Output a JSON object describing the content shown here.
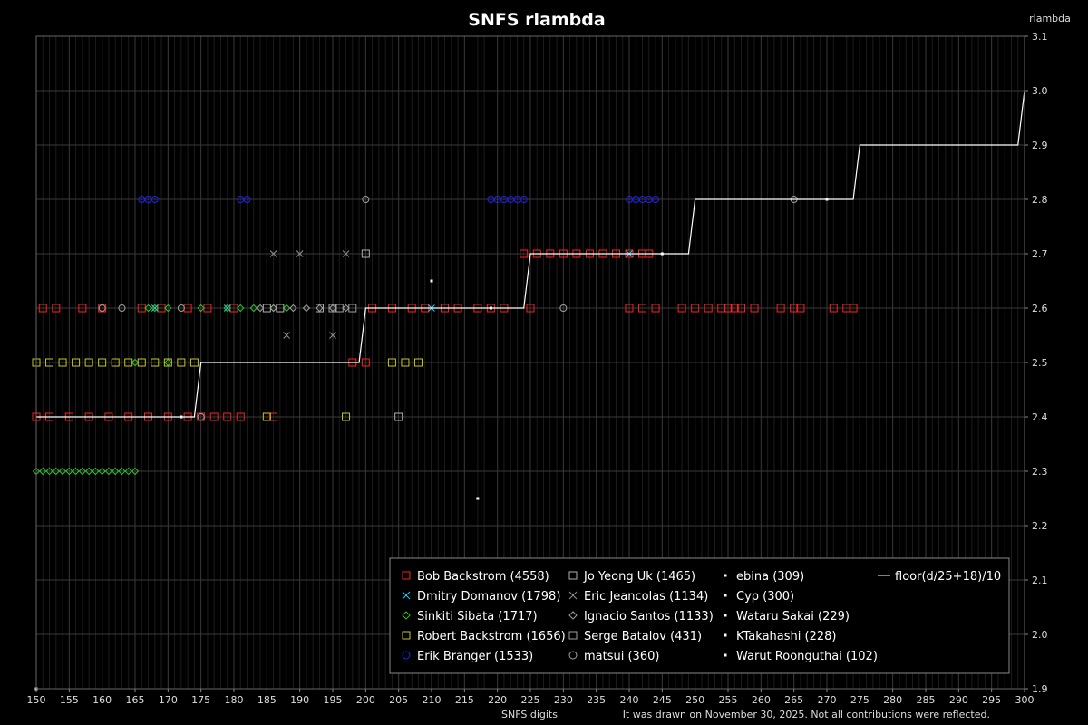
{
  "chart_data": {
    "type": "scatter",
    "title": "SNFS rlambda",
    "xlabel": "SNFS digits",
    "ylabel": "rlambda",
    "footnote": "It was drawn on November 30, 2025. Not all contributions were reflected.",
    "xlim": [
      150,
      300
    ],
    "ylim": [
      1.9,
      3.1
    ],
    "x_ticks": [
      150,
      155,
      160,
      165,
      170,
      175,
      180,
      185,
      190,
      195,
      200,
      205,
      210,
      215,
      220,
      225,
      230,
      235,
      240,
      245,
      250,
      255,
      260,
      265,
      270,
      275,
      280,
      285,
      290,
      295,
      300
    ],
    "y_ticks": [
      1.9,
      2.0,
      2.1,
      2.2,
      2.3,
      2.4,
      2.5,
      2.6,
      2.7,
      2.8,
      2.9,
      3.0,
      3.1
    ],
    "grid": true,
    "legend_position": "bottom-right",
    "series": [
      {
        "name": "Bob Backstrom (4558)",
        "color": "#ff2020",
        "marker": "square",
        "points": [
          [
            150,
            2.4
          ],
          [
            152,
            2.4
          ],
          [
            155,
            2.4
          ],
          [
            158,
            2.4
          ],
          [
            161,
            2.4
          ],
          [
            164,
            2.4
          ],
          [
            167,
            2.4
          ],
          [
            170,
            2.4
          ],
          [
            173,
            2.4
          ],
          [
            175,
            2.4
          ],
          [
            177,
            2.4
          ],
          [
            179,
            2.4
          ],
          [
            181,
            2.4
          ],
          [
            186,
            2.4
          ],
          [
            151,
            2.6
          ],
          [
            153,
            2.6
          ],
          [
            157,
            2.6
          ],
          [
            160,
            2.6
          ],
          [
            166,
            2.6
          ],
          [
            169,
            2.6
          ],
          [
            173,
            2.6
          ],
          [
            176,
            2.6
          ],
          [
            180,
            2.6
          ],
          [
            198,
            2.5
          ],
          [
            200,
            2.5
          ],
          [
            201,
            2.6
          ],
          [
            204,
            2.6
          ],
          [
            207,
            2.6
          ],
          [
            209,
            2.6
          ],
          [
            212,
            2.6
          ],
          [
            214,
            2.6
          ],
          [
            217,
            2.6
          ],
          [
            219,
            2.6
          ],
          [
            221,
            2.6
          ],
          [
            225,
            2.6
          ],
          [
            224,
            2.7
          ],
          [
            226,
            2.7
          ],
          [
            228,
            2.7
          ],
          [
            230,
            2.7
          ],
          [
            232,
            2.7
          ],
          [
            234,
            2.7
          ],
          [
            236,
            2.7
          ],
          [
            238,
            2.7
          ],
          [
            240,
            2.7
          ],
          [
            242,
            2.7
          ],
          [
            243,
            2.7
          ],
          [
            240,
            2.6
          ],
          [
            242,
            2.6
          ],
          [
            244,
            2.6
          ],
          [
            248,
            2.6
          ],
          [
            250,
            2.6
          ],
          [
            252,
            2.6
          ],
          [
            254,
            2.6
          ],
          [
            255,
            2.6
          ],
          [
            256,
            2.6
          ],
          [
            257,
            2.6
          ],
          [
            259,
            2.6
          ],
          [
            263,
            2.6
          ],
          [
            265,
            2.6
          ],
          [
            266,
            2.6
          ],
          [
            271,
            2.6
          ],
          [
            273,
            2.6
          ],
          [
            274,
            2.6
          ]
        ]
      },
      {
        "name": "Dmitry Domanov (1798)",
        "color": "#20d0ff",
        "marker": "x",
        "points": [
          [
            168,
            2.6
          ],
          [
            179,
            2.6
          ],
          [
            210,
            2.6
          ],
          [
            240,
            2.7
          ]
        ]
      },
      {
        "name": "Sinkiti Sibata (1717)",
        "color": "#30c030",
        "marker": "diamond",
        "points": [
          [
            150,
            2.3
          ],
          [
            151,
            2.3
          ],
          [
            152,
            2.3
          ],
          [
            153,
            2.3
          ],
          [
            154,
            2.3
          ],
          [
            155,
            2.3
          ],
          [
            156,
            2.3
          ],
          [
            157,
            2.3
          ],
          [
            158,
            2.3
          ],
          [
            159,
            2.3
          ],
          [
            160,
            2.3
          ],
          [
            161,
            2.3
          ],
          [
            162,
            2.3
          ],
          [
            163,
            2.3
          ],
          [
            164,
            2.3
          ],
          [
            165,
            2.3
          ],
          [
            167,
            2.6
          ],
          [
            168,
            2.6
          ],
          [
            170,
            2.6
          ],
          [
            175,
            2.6
          ],
          [
            179,
            2.6
          ],
          [
            181,
            2.6
          ],
          [
            183,
            2.6
          ],
          [
            186,
            2.6
          ],
          [
            188,
            2.6
          ],
          [
            165,
            2.5
          ],
          [
            170,
            2.5
          ]
        ]
      },
      {
        "name": "Robert Backstrom (1656)",
        "color": "#c8c820",
        "marker": "square",
        "points": [
          [
            150,
            2.5
          ],
          [
            152,
            2.5
          ],
          [
            154,
            2.5
          ],
          [
            156,
            2.5
          ],
          [
            158,
            2.5
          ],
          [
            160,
            2.5
          ],
          [
            162,
            2.5
          ],
          [
            164,
            2.5
          ],
          [
            166,
            2.5
          ],
          [
            168,
            2.5
          ],
          [
            170,
            2.5
          ],
          [
            172,
            2.5
          ],
          [
            174,
            2.5
          ],
          [
            204,
            2.5
          ],
          [
            206,
            2.5
          ],
          [
            208,
            2.5
          ],
          [
            185,
            2.4
          ],
          [
            197,
            2.4
          ]
        ]
      },
      {
        "name": "Erik Branger (1533)",
        "color": "#2020ff",
        "marker": "circle",
        "points": [
          [
            166,
            2.8
          ],
          [
            167,
            2.8
          ],
          [
            168,
            2.8
          ],
          [
            181,
            2.8
          ],
          [
            182,
            2.8
          ],
          [
            219,
            2.8
          ],
          [
            220,
            2.8
          ],
          [
            221,
            2.8
          ],
          [
            222,
            2.8
          ],
          [
            223,
            2.8
          ],
          [
            224,
            2.8
          ],
          [
            240,
            2.8
          ],
          [
            241,
            2.8
          ],
          [
            242,
            2.8
          ],
          [
            243,
            2.8
          ],
          [
            244,
            2.8
          ]
        ]
      },
      {
        "name": "Jo Yeong Uk (1465)",
        "color": "#b0b0b0",
        "marker": "square",
        "points": [
          [
            200,
            2.7
          ],
          [
            185,
            2.6
          ],
          [
            193,
            2.6
          ],
          [
            205,
            2.4
          ],
          [
            187,
            2.6
          ]
        ]
      },
      {
        "name": "Eric Jeancolas (1134)",
        "color": "#909090",
        "marker": "x",
        "points": [
          [
            186,
            2.7
          ],
          [
            190,
            2.7
          ],
          [
            197,
            2.7
          ],
          [
            188,
            2.55
          ],
          [
            195,
            2.55
          ]
        ]
      },
      {
        "name": "Ignacio Santos (1133)",
        "color": "#a0a0a0",
        "marker": "diamond",
        "points": [
          [
            184,
            2.6
          ],
          [
            186,
            2.6
          ],
          [
            189,
            2.6
          ],
          [
            191,
            2.6
          ],
          [
            193,
            2.6
          ],
          [
            195,
            2.6
          ],
          [
            197,
            2.6
          ]
        ]
      },
      {
        "name": "Serge Batalov (431)",
        "color": "#a0a0a0",
        "marker": "square",
        "points": [
          [
            195,
            2.6
          ],
          [
            196,
            2.6
          ],
          [
            198,
            2.6
          ]
        ]
      },
      {
        "name": "matsui (360)",
        "color": "#a0a0a0",
        "marker": "circle",
        "points": [
          [
            160,
            2.6
          ],
          [
            163,
            2.6
          ],
          [
            172,
            2.6
          ],
          [
            175,
            2.4
          ],
          [
            200,
            2.8
          ],
          [
            230,
            2.6
          ],
          [
            265,
            2.8
          ]
        ]
      },
      {
        "name": "ebina (309)",
        "color": "#ffffff",
        "marker": "dot",
        "points": [
          [
            219,
            2.6
          ],
          [
            245,
            2.7
          ]
        ]
      },
      {
        "name": "Cyp (300)",
        "color": "#ffffff",
        "marker": "dot",
        "points": [
          [
            172,
            2.4
          ],
          [
            210,
            2.65
          ]
        ]
      },
      {
        "name": "Wataru Sakai (229)",
        "color": "#ffffff",
        "marker": "dot",
        "points": [
          [
            270,
            2.8
          ]
        ]
      },
      {
        "name": "KTakahashi (228)",
        "color": "#ffffff",
        "marker": "dot",
        "points": [
          [
            150,
            1.9
          ]
        ]
      },
      {
        "name": "Warut Roonguthai (102)",
        "color": "#ffffff",
        "marker": "dot",
        "points": [
          [
            217,
            2.25
          ]
        ]
      },
      {
        "name": "floor(d/25+18)/10",
        "color": "#ffffff",
        "marker": "line",
        "points": [
          [
            150,
            2.4
          ],
          [
            174,
            2.4
          ],
          [
            175,
            2.5
          ],
          [
            199,
            2.5
          ],
          [
            200,
            2.6
          ],
          [
            224,
            2.6
          ],
          [
            225,
            2.7
          ],
          [
            249,
            2.7
          ],
          [
            250,
            2.8
          ],
          [
            274,
            2.8
          ],
          [
            275,
            2.9
          ],
          [
            299,
            2.9
          ],
          [
            300,
            3.0
          ]
        ]
      }
    ]
  }
}
